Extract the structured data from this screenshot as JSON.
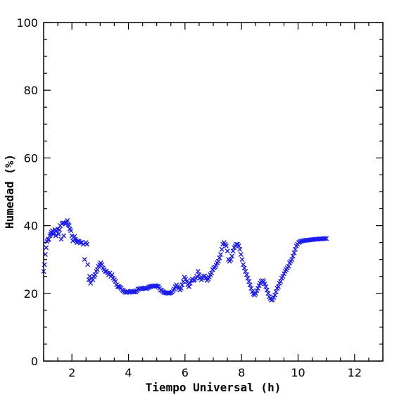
{
  "chart_data": {
    "type": "scatter",
    "title": "",
    "xlabel": "Tiempo Universal (h)",
    "ylabel": "Humedad (%)",
    "xlim": [
      1,
      13
    ],
    "ylim": [
      0,
      100
    ],
    "xticks": [
      2,
      4,
      6,
      8,
      10,
      12
    ],
    "yticks": [
      0,
      20,
      40,
      60,
      80,
      100
    ],
    "x_minor_step": 0.5,
    "y_minor_step": 5,
    "grid": false,
    "legend": "none",
    "marker": "x",
    "series_color": "#1a1aee",
    "series": [
      {
        "points": [
          [
            1.0,
            26.5
          ],
          [
            1.03,
            28.5
          ],
          [
            1.06,
            31.5
          ],
          [
            1.09,
            33.5
          ],
          [
            1.12,
            35.3
          ],
          [
            1.15,
            35.8
          ],
          [
            1.18,
            36.0
          ],
          [
            1.22,
            37.0
          ],
          [
            1.25,
            37.5
          ],
          [
            1.28,
            38.0
          ],
          [
            1.31,
            38.5
          ],
          [
            1.34,
            37.5
          ],
          [
            1.37,
            38.0
          ],
          [
            1.4,
            38.8
          ],
          [
            1.43,
            37.0
          ],
          [
            1.46,
            38.5
          ],
          [
            1.5,
            39.0
          ],
          [
            1.53,
            37.5
          ],
          [
            1.56,
            38.8
          ],
          [
            1.59,
            40.0
          ],
          [
            1.62,
            36.0
          ],
          [
            1.65,
            40.5
          ],
          [
            1.68,
            40.8
          ],
          [
            1.71,
            37.0
          ],
          [
            1.74,
            40.8
          ],
          [
            1.78,
            40.5
          ],
          [
            1.81,
            41.0
          ],
          [
            1.84,
            41.5
          ],
          [
            1.87,
            40.3
          ],
          [
            1.9,
            40.0
          ],
          [
            1.93,
            39.0
          ],
          [
            1.96,
            38.5
          ],
          [
            2.0,
            37.0
          ],
          [
            2.03,
            35.5
          ],
          [
            2.06,
            36.5
          ],
          [
            2.09,
            36.8
          ],
          [
            2.12,
            36.0
          ],
          [
            2.15,
            35.5
          ],
          [
            2.18,
            35.0
          ],
          [
            2.22,
            35.5
          ],
          [
            2.25,
            35.3
          ],
          [
            2.3,
            35.0
          ],
          [
            2.35,
            35.0
          ],
          [
            2.4,
            34.5
          ],
          [
            2.45,
            30.0
          ],
          [
            2.5,
            35.0
          ],
          [
            2.53,
            34.5
          ],
          [
            2.56,
            28.5
          ],
          [
            2.6,
            24.0
          ],
          [
            2.63,
            25.0
          ],
          [
            2.66,
            23.0
          ],
          [
            2.7,
            24.5
          ],
          [
            2.74,
            24.0
          ],
          [
            2.78,
            25.0
          ],
          [
            2.82,
            25.5
          ],
          [
            2.86,
            26.5
          ],
          [
            2.9,
            27.0
          ],
          [
            2.94,
            28.0
          ],
          [
            2.98,
            28.5
          ],
          [
            3.02,
            29.0
          ],
          [
            3.06,
            28.5
          ],
          [
            3.1,
            27.5
          ],
          [
            3.14,
            27.0
          ],
          [
            3.18,
            26.5
          ],
          [
            3.22,
            26.5
          ],
          [
            3.26,
            26.0
          ],
          [
            3.3,
            25.5
          ],
          [
            3.34,
            26.0
          ],
          [
            3.38,
            25.0
          ],
          [
            3.42,
            25.5
          ],
          [
            3.46,
            24.5
          ],
          [
            3.5,
            24.0
          ],
          [
            3.54,
            23.5
          ],
          [
            3.58,
            22.5
          ],
          [
            3.62,
            22.0
          ],
          [
            3.66,
            22.0
          ],
          [
            3.7,
            21.8
          ],
          [
            3.74,
            21.5
          ],
          [
            3.78,
            21.0
          ],
          [
            3.82,
            20.8
          ],
          [
            3.86,
            20.5
          ],
          [
            3.9,
            20.3
          ],
          [
            3.94,
            20.3
          ],
          [
            3.98,
            20.5
          ],
          [
            4.02,
            20.3
          ],
          [
            4.06,
            20.5
          ],
          [
            4.1,
            20.7
          ],
          [
            4.14,
            20.5
          ],
          [
            4.18,
            20.4
          ],
          [
            4.22,
            20.4
          ],
          [
            4.26,
            20.5
          ],
          [
            4.3,
            20.8
          ],
          [
            4.34,
            21.2
          ],
          [
            4.38,
            21.3
          ],
          [
            4.42,
            21.5
          ],
          [
            4.46,
            21.3
          ],
          [
            4.5,
            21.5
          ],
          [
            4.54,
            21.5
          ],
          [
            4.58,
            21.6
          ],
          [
            4.62,
            21.4
          ],
          [
            4.66,
            21.5
          ],
          [
            4.7,
            21.7
          ],
          [
            4.74,
            21.9
          ],
          [
            4.78,
            22.0
          ],
          [
            4.82,
            22.1
          ],
          [
            4.86,
            22.2
          ],
          [
            4.9,
            22.1
          ],
          [
            4.94,
            22.3
          ],
          [
            4.98,
            22.2
          ],
          [
            5.02,
            22.1
          ],
          [
            5.06,
            22.0
          ],
          [
            5.1,
            21.5
          ],
          [
            5.14,
            21.0
          ],
          [
            5.18,
            20.8
          ],
          [
            5.22,
            20.5
          ],
          [
            5.26,
            20.3
          ],
          [
            5.3,
            20.2
          ],
          [
            5.34,
            20.1
          ],
          [
            5.38,
            20.1
          ],
          [
            5.42,
            20.0
          ],
          [
            5.46,
            20.1
          ],
          [
            5.5,
            20.2
          ],
          [
            5.54,
            20.4
          ],
          [
            5.58,
            20.8
          ],
          [
            5.62,
            21.3
          ],
          [
            5.66,
            22.0
          ],
          [
            5.7,
            22.5
          ],
          [
            5.74,
            22.0
          ],
          [
            5.78,
            21.5
          ],
          [
            5.82,
            21.0
          ],
          [
            5.86,
            21.5
          ],
          [
            5.9,
            22.5
          ],
          [
            5.94,
            23.5
          ],
          [
            5.98,
            24.8
          ],
          [
            6.02,
            24.2
          ],
          [
            6.06,
            23.5
          ],
          [
            6.1,
            22.5
          ],
          [
            6.14,
            22.0
          ],
          [
            6.18,
            23.0
          ],
          [
            6.22,
            23.8
          ],
          [
            6.26,
            24.2
          ],
          [
            6.3,
            23.8
          ],
          [
            6.34,
            24.0
          ],
          [
            6.38,
            24.5
          ],
          [
            6.42,
            25.0
          ],
          [
            6.46,
            26.5
          ],
          [
            6.5,
            25.5
          ],
          [
            6.54,
            24.5
          ],
          [
            6.58,
            24.0
          ],
          [
            6.62,
            24.5
          ],
          [
            6.66,
            25.0
          ],
          [
            6.7,
            25.2
          ],
          [
            6.74,
            24.5
          ],
          [
            6.78,
            23.8
          ],
          [
            6.82,
            24.2
          ],
          [
            6.86,
            24.8
          ],
          [
            6.9,
            25.5
          ],
          [
            6.94,
            26.0
          ],
          [
            6.98,
            27.0
          ],
          [
            7.02,
            27.5
          ],
          [
            7.06,
            27.8
          ],
          [
            7.1,
            28.3
          ],
          [
            7.14,
            29.0
          ],
          [
            7.18,
            29.5
          ],
          [
            7.22,
            30.5
          ],
          [
            7.26,
            31.5
          ],
          [
            7.3,
            33.0
          ],
          [
            7.34,
            34.5
          ],
          [
            7.38,
            35.0
          ],
          [
            7.42,
            34.5
          ],
          [
            7.46,
            34.0
          ],
          [
            7.5,
            32.5
          ],
          [
            7.54,
            30.0
          ],
          [
            7.58,
            29.5
          ],
          [
            7.62,
            30.0
          ],
          [
            7.66,
            31.0
          ],
          [
            7.7,
            32.5
          ],
          [
            7.74,
            33.5
          ],
          [
            7.78,
            34.0
          ],
          [
            7.82,
            34.5
          ],
          [
            7.86,
            34.5
          ],
          [
            7.9,
            34.0
          ],
          [
            7.94,
            33.0
          ],
          [
            7.98,
            31.5
          ],
          [
            8.02,
            30.0
          ],
          [
            8.06,
            28.5
          ],
          [
            8.1,
            27.5
          ],
          [
            8.14,
            26.5
          ],
          [
            8.18,
            25.5
          ],
          [
            8.22,
            24.5
          ],
          [
            8.26,
            23.5
          ],
          [
            8.3,
            22.5
          ],
          [
            8.34,
            21.5
          ],
          [
            8.38,
            20.5
          ],
          [
            8.42,
            19.8
          ],
          [
            8.46,
            19.5
          ],
          [
            8.5,
            20.0
          ],
          [
            8.54,
            20.8
          ],
          [
            8.58,
            21.5
          ],
          [
            8.62,
            22.3
          ],
          [
            8.66,
            23.0
          ],
          [
            8.7,
            23.5
          ],
          [
            8.74,
            23.8
          ],
          [
            8.78,
            23.5
          ],
          [
            8.82,
            22.8
          ],
          [
            8.86,
            22.0
          ],
          [
            8.9,
            21.0
          ],
          [
            8.94,
            20.0
          ],
          [
            8.98,
            19.0
          ],
          [
            9.02,
            18.5
          ],
          [
            9.06,
            18.0
          ],
          [
            9.1,
            18.2
          ],
          [
            9.14,
            18.8
          ],
          [
            9.18,
            19.5
          ],
          [
            9.22,
            20.5
          ],
          [
            9.26,
            21.5
          ],
          [
            9.3,
            22.0
          ],
          [
            9.34,
            23.0
          ],
          [
            9.38,
            23.5
          ],
          [
            9.42,
            24.5
          ],
          [
            9.46,
            25.0
          ],
          [
            9.5,
            25.8
          ],
          [
            9.54,
            26.5
          ],
          [
            9.58,
            27.0
          ],
          [
            9.62,
            27.5
          ],
          [
            9.66,
            28.0
          ],
          [
            9.7,
            29.0
          ],
          [
            9.74,
            29.5
          ],
          [
            9.78,
            30.0
          ],
          [
            9.82,
            31.0
          ],
          [
            9.86,
            32.0
          ],
          [
            9.9,
            33.0
          ],
          [
            9.94,
            34.0
          ],
          [
            9.98,
            34.5
          ],
          [
            10.02,
            35.0
          ],
          [
            10.06,
            35.2
          ],
          [
            10.1,
            35.4
          ],
          [
            10.15,
            35.5
          ],
          [
            10.2,
            35.6
          ],
          [
            10.25,
            35.6
          ],
          [
            10.3,
            35.7
          ],
          [
            10.35,
            35.7
          ],
          [
            10.4,
            35.8
          ],
          [
            10.45,
            35.8
          ],
          [
            10.5,
            35.9
          ],
          [
            10.55,
            35.9
          ],
          [
            10.6,
            36.0
          ],
          [
            10.65,
            36.0
          ],
          [
            10.7,
            36.0
          ],
          [
            10.75,
            36.1
          ],
          [
            10.8,
            36.1
          ],
          [
            10.85,
            36.1
          ],
          [
            10.9,
            36.2
          ],
          [
            10.95,
            36.2
          ],
          [
            11.0,
            36.2
          ]
        ]
      }
    ]
  }
}
